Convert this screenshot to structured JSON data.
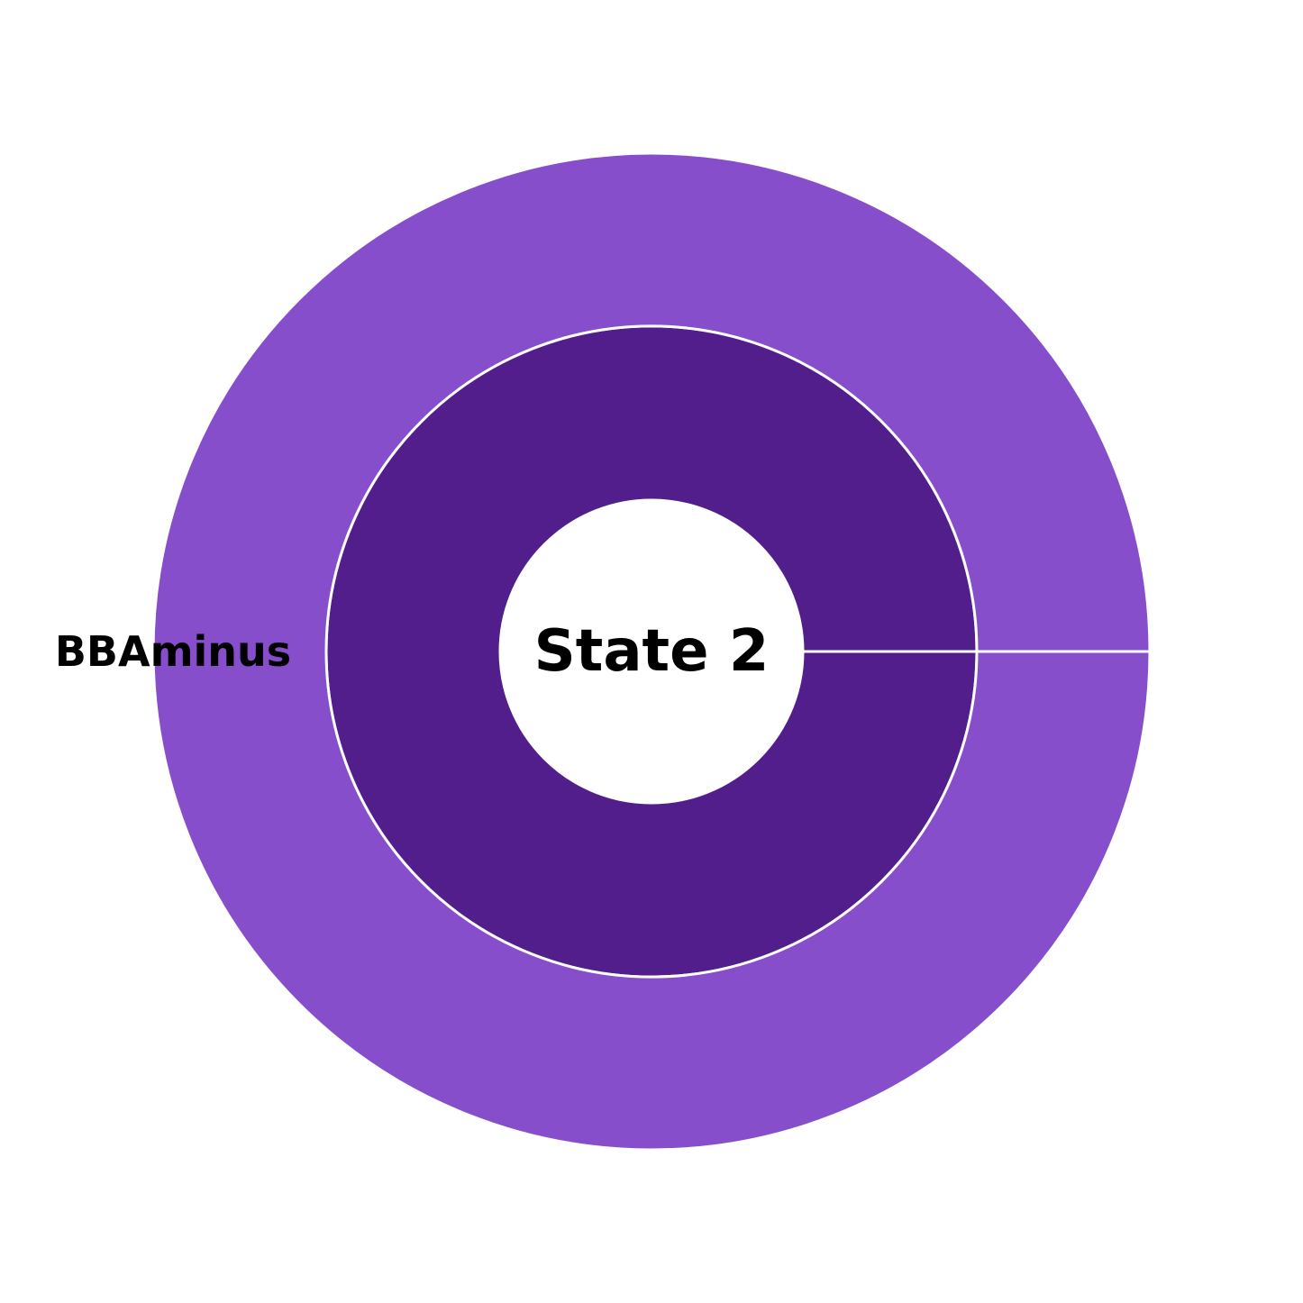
{
  "chart_data": {
    "type": "pie",
    "center_label": "State 2",
    "rings": [
      {
        "level": "inner",
        "slices": [
          {
            "label": "",
            "value": 1,
            "color": "#521e8c"
          }
        ]
      },
      {
        "level": "outer",
        "slices": [
          {
            "label": "BBAminus",
            "value": 1,
            "color": "#874ecb"
          }
        ]
      }
    ]
  }
}
